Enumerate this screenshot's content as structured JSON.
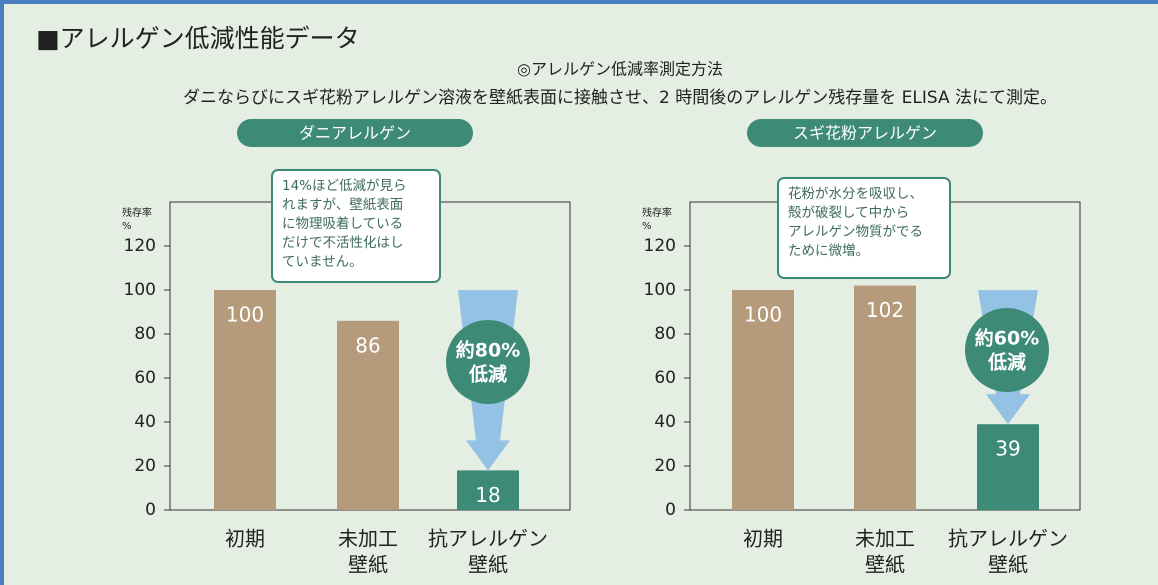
{
  "header": {
    "title": "■アレルゲン低減性能データ",
    "method_title": "◎アレルゲン低減率測定方法",
    "method_text": "ダニならびにスギ花粉アレルゲン溶液を壁紙表面に接触させ、2 時間後のアレルゲン残存量を ELISA 法にて測定。"
  },
  "chart_data": [
    {
      "type": "bar",
      "title": "ダニアレルゲン",
      "ylabel": [
        "残存率",
        "%"
      ],
      "categories": [
        [
          "初期"
        ],
        [
          "未加工",
          "壁紙"
        ],
        [
          "抗アレルゲン",
          "壁紙"
        ]
      ],
      "values": [
        100,
        86,
        18
      ],
      "colors": [
        "#b59a7b",
        "#b59a7b",
        "#3d8a76"
      ],
      "ylim": [
        0,
        140
      ],
      "yticks": [
        0,
        20,
        40,
        60,
        80,
        100,
        120
      ],
      "callout": [
        "14%ほど低減が見ら",
        "れますが、壁紙表面",
        "に物理吸着している",
        "だけで不活性化はし",
        "ていません。"
      ],
      "badge": [
        "約80%",
        "低減"
      ]
    },
    {
      "type": "bar",
      "title": "スギ花粉アレルゲン",
      "ylabel": [
        "残存率",
        "%"
      ],
      "categories": [
        [
          "初期"
        ],
        [
          "未加工",
          "壁紙"
        ],
        [
          "抗アレルゲン",
          "壁紙"
        ]
      ],
      "values": [
        100,
        102,
        39
      ],
      "colors": [
        "#b59a7b",
        "#b59a7b",
        "#3d8a76"
      ],
      "ylim": [
        0,
        140
      ],
      "yticks": [
        0,
        20,
        40,
        60,
        80,
        100,
        120
      ],
      "callout": [
        "花粉が水分を吸収し、",
        "殻が破裂して中から",
        "アレルゲン物質がでる",
        "ために微増。"
      ],
      "badge": [
        "約60%",
        "低減"
      ]
    }
  ]
}
